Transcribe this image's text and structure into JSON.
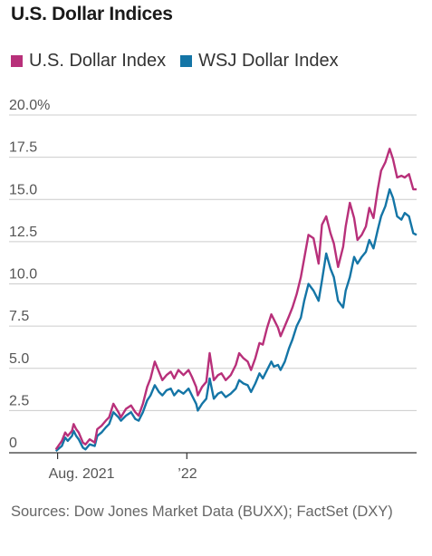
{
  "header": {
    "title": "U.S. Dollar Indices"
  },
  "colors": {
    "buxx": "#b8307a",
    "wsj": "#1475a6",
    "grid": "#cccccc",
    "axis": "#333333"
  },
  "footer": {
    "source": "Sources: Dow Jones Market Data (BUXX); FactSet (DXY)"
  },
  "chart_data": {
    "type": "line",
    "title": "U.S. Dollar Indices",
    "xlabel": "",
    "ylabel": "",
    "x_range": [
      "2021-07-26",
      "2022-09-30"
    ],
    "x_ticks": [
      {
        "date": "2021-08-01",
        "label": "Aug. 2021"
      },
      {
        "date": "2022-01-01",
        "label": "’22"
      }
    ],
    "ylim": [
      0,
      20
    ],
    "y_ticks": [
      {
        "value": 0,
        "label": "0"
      },
      {
        "value": 2.5,
        "label": "2.5"
      },
      {
        "value": 5,
        "label": "5.0"
      },
      {
        "value": 7.5,
        "label": "7.5"
      },
      {
        "value": 10,
        "label": "10.0"
      },
      {
        "value": 12.5,
        "label": "12.5"
      },
      {
        "value": 15,
        "label": "15.0"
      },
      {
        "value": 17.5,
        "label": "17.5"
      },
      {
        "value": 20,
        "label": "20.0%"
      }
    ],
    "grid": true,
    "legend_position": "top-left",
    "series": [
      {
        "name": "U.S. Dollar Index",
        "color": "#b8307a",
        "points": [
          [
            "2021-07-30",
            0.2
          ],
          [
            "2021-08-06",
            0.7
          ],
          [
            "2021-08-10",
            1.2
          ],
          [
            "2021-08-13",
            1.0
          ],
          [
            "2021-08-18",
            1.3
          ],
          [
            "2021-08-20",
            1.7
          ],
          [
            "2021-08-23",
            1.4
          ],
          [
            "2021-08-26",
            1.2
          ],
          [
            "2021-08-31",
            0.6
          ],
          [
            "2021-09-03",
            0.5
          ],
          [
            "2021-09-08",
            0.8
          ],
          [
            "2021-09-14",
            0.6
          ],
          [
            "2021-09-17",
            1.4
          ],
          [
            "2021-09-22",
            1.6
          ],
          [
            "2021-09-27",
            1.9
          ],
          [
            "2021-10-01",
            2.1
          ],
          [
            "2021-10-06",
            2.9
          ],
          [
            "2021-10-12",
            2.4
          ],
          [
            "2021-10-15",
            2.1
          ],
          [
            "2021-10-21",
            2.6
          ],
          [
            "2021-10-27",
            2.8
          ],
          [
            "2021-11-01",
            2.4
          ],
          [
            "2021-11-05",
            2.2
          ],
          [
            "2021-11-10",
            2.9
          ],
          [
            "2021-11-15",
            3.9
          ],
          [
            "2021-11-19",
            4.4
          ],
          [
            "2021-11-24",
            5.4
          ],
          [
            "2021-11-29",
            4.8
          ],
          [
            "2021-12-03",
            4.3
          ],
          [
            "2021-12-08",
            4.6
          ],
          [
            "2021-12-13",
            4.8
          ],
          [
            "2021-12-17",
            4.4
          ],
          [
            "2021-12-22",
            4.9
          ],
          [
            "2021-12-28",
            4.6
          ],
          [
            "2022-01-03",
            4.9
          ],
          [
            "2022-01-07",
            4.5
          ],
          [
            "2022-01-12",
            3.9
          ],
          [
            "2022-01-14",
            3.4
          ],
          [
            "2022-01-19",
            3.9
          ],
          [
            "2022-01-24",
            4.2
          ],
          [
            "2022-01-28",
            5.9
          ],
          [
            "2022-02-02",
            4.3
          ],
          [
            "2022-02-07",
            4.6
          ],
          [
            "2022-02-11",
            4.7
          ],
          [
            "2022-02-16",
            4.3
          ],
          [
            "2022-02-22",
            4.6
          ],
          [
            "2022-02-28",
            5.2
          ],
          [
            "2022-03-04",
            5.9
          ],
          [
            "2022-03-09",
            5.6
          ],
          [
            "2022-03-14",
            5.4
          ],
          [
            "2022-03-18",
            4.9
          ],
          [
            "2022-03-23",
            5.6
          ],
          [
            "2022-03-28",
            6.5
          ],
          [
            "2022-04-01",
            6.4
          ],
          [
            "2022-04-06",
            7.4
          ],
          [
            "2022-04-11",
            8.2
          ],
          [
            "2022-04-14",
            7.9
          ],
          [
            "2022-04-19",
            7.4
          ],
          [
            "2022-04-22",
            6.9
          ],
          [
            "2022-04-27",
            7.5
          ],
          [
            "2022-05-02",
            8.1
          ],
          [
            "2022-05-06",
            8.6
          ],
          [
            "2022-05-11",
            9.4
          ],
          [
            "2022-05-16",
            10.4
          ],
          [
            "2022-05-20",
            11.5
          ],
          [
            "2022-05-25",
            12.9
          ],
          [
            "2022-05-31",
            12.7
          ],
          [
            "2022-06-06",
            11.2
          ],
          [
            "2022-06-10",
            13.5
          ],
          [
            "2022-06-15",
            14.0
          ],
          [
            "2022-06-20",
            13.0
          ],
          [
            "2022-06-24",
            12.4
          ],
          [
            "2022-06-29",
            11.0
          ],
          [
            "2022-07-05",
            12.2
          ],
          [
            "2022-07-08",
            13.4
          ],
          [
            "2022-07-13",
            14.8
          ],
          [
            "2022-07-18",
            13.9
          ],
          [
            "2022-07-22",
            12.6
          ],
          [
            "2022-07-27",
            12.9
          ],
          [
            "2022-08-01",
            13.4
          ],
          [
            "2022-08-05",
            14.5
          ],
          [
            "2022-08-10",
            13.9
          ],
          [
            "2022-08-15",
            15.6
          ],
          [
            "2022-08-19",
            16.7
          ],
          [
            "2022-08-24",
            17.2
          ],
          [
            "2022-08-29",
            18.0
          ],
          [
            "2022-09-02",
            17.4
          ],
          [
            "2022-09-07",
            16.3
          ],
          [
            "2022-09-12",
            16.4
          ],
          [
            "2022-09-16",
            16.3
          ],
          [
            "2022-09-21",
            16.5
          ],
          [
            "2022-09-26",
            15.6
          ],
          [
            "2022-09-30",
            15.6
          ]
        ]
      },
      {
        "name": "WSJ Dollar Index",
        "color": "#1475a6",
        "points": [
          [
            "2021-07-30",
            0.1
          ],
          [
            "2021-08-06",
            0.4
          ],
          [
            "2021-08-10",
            0.9
          ],
          [
            "2021-08-13",
            0.7
          ],
          [
            "2021-08-18",
            1.0
          ],
          [
            "2021-08-20",
            1.3
          ],
          [
            "2021-08-23",
            1.0
          ],
          [
            "2021-08-26",
            0.8
          ],
          [
            "2021-08-31",
            0.3
          ],
          [
            "2021-09-03",
            0.2
          ],
          [
            "2021-09-08",
            0.5
          ],
          [
            "2021-09-14",
            0.4
          ],
          [
            "2021-09-17",
            1.0
          ],
          [
            "2021-09-22",
            1.2
          ],
          [
            "2021-09-27",
            1.5
          ],
          [
            "2021-10-01",
            1.7
          ],
          [
            "2021-10-06",
            2.4
          ],
          [
            "2021-10-12",
            2.1
          ],
          [
            "2021-10-15",
            1.9
          ],
          [
            "2021-10-21",
            2.2
          ],
          [
            "2021-10-27",
            2.4
          ],
          [
            "2021-11-01",
            2.0
          ],
          [
            "2021-11-05",
            1.9
          ],
          [
            "2021-11-10",
            2.4
          ],
          [
            "2021-11-15",
            3.1
          ],
          [
            "2021-11-19",
            3.4
          ],
          [
            "2021-11-24",
            4.0
          ],
          [
            "2021-11-29",
            3.6
          ],
          [
            "2021-12-03",
            3.4
          ],
          [
            "2021-12-08",
            3.7
          ],
          [
            "2021-12-13",
            3.8
          ],
          [
            "2021-12-17",
            3.4
          ],
          [
            "2021-12-22",
            3.7
          ],
          [
            "2021-12-28",
            3.5
          ],
          [
            "2022-01-03",
            3.8
          ],
          [
            "2022-01-07",
            3.4
          ],
          [
            "2022-01-12",
            2.9
          ],
          [
            "2022-01-14",
            2.5
          ],
          [
            "2022-01-19",
            2.9
          ],
          [
            "2022-01-24",
            3.2
          ],
          [
            "2022-01-28",
            4.4
          ],
          [
            "2022-02-02",
            3.2
          ],
          [
            "2022-02-07",
            3.5
          ],
          [
            "2022-02-11",
            3.6
          ],
          [
            "2022-02-16",
            3.3
          ],
          [
            "2022-02-22",
            3.5
          ],
          [
            "2022-02-28",
            3.8
          ],
          [
            "2022-03-04",
            4.3
          ],
          [
            "2022-03-09",
            4.1
          ],
          [
            "2022-03-14",
            4.0
          ],
          [
            "2022-03-18",
            3.6
          ],
          [
            "2022-03-23",
            4.1
          ],
          [
            "2022-03-28",
            4.7
          ],
          [
            "2022-04-01",
            4.4
          ],
          [
            "2022-04-06",
            4.9
          ],
          [
            "2022-04-11",
            5.4
          ],
          [
            "2022-04-14",
            5.1
          ],
          [
            "2022-04-19",
            5.2
          ],
          [
            "2022-04-22",
            4.9
          ],
          [
            "2022-04-27",
            5.4
          ],
          [
            "2022-05-02",
            6.2
          ],
          [
            "2022-05-06",
            6.7
          ],
          [
            "2022-05-11",
            7.5
          ],
          [
            "2022-05-16",
            8.0
          ],
          [
            "2022-05-20",
            9.0
          ],
          [
            "2022-05-25",
            10.0
          ],
          [
            "2022-05-31",
            9.6
          ],
          [
            "2022-06-06",
            9.0
          ],
          [
            "2022-06-10",
            10.2
          ],
          [
            "2022-06-15",
            11.8
          ],
          [
            "2022-06-20",
            10.9
          ],
          [
            "2022-06-24",
            10.4
          ],
          [
            "2022-06-29",
            9.0
          ],
          [
            "2022-07-05",
            8.6
          ],
          [
            "2022-07-08",
            9.6
          ],
          [
            "2022-07-13",
            10.4
          ],
          [
            "2022-07-18",
            11.6
          ],
          [
            "2022-07-22",
            11.2
          ],
          [
            "2022-07-27",
            11.6
          ],
          [
            "2022-08-01",
            11.9
          ],
          [
            "2022-08-05",
            12.6
          ],
          [
            "2022-08-10",
            12.1
          ],
          [
            "2022-08-15",
            13.2
          ],
          [
            "2022-08-19",
            14.0
          ],
          [
            "2022-08-24",
            14.6
          ],
          [
            "2022-08-29",
            15.6
          ],
          [
            "2022-09-02",
            15.1
          ],
          [
            "2022-09-07",
            14.0
          ],
          [
            "2022-09-12",
            13.8
          ],
          [
            "2022-09-16",
            14.2
          ],
          [
            "2022-09-21",
            14.0
          ],
          [
            "2022-09-26",
            13.0
          ],
          [
            "2022-09-30",
            12.9
          ]
        ]
      }
    ]
  }
}
